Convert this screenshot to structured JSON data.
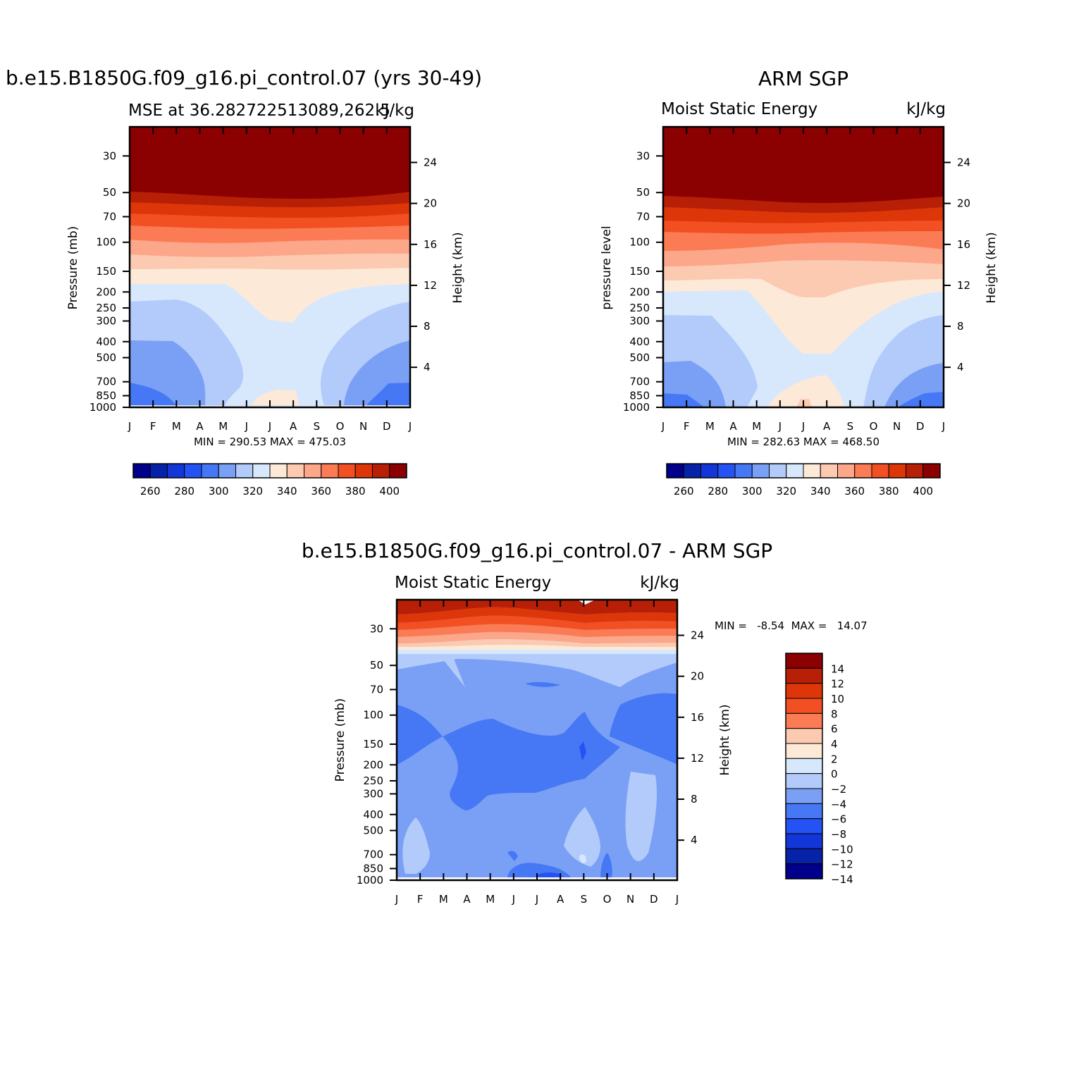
{
  "chart_data": [
    {
      "type": "heatmap",
      "title": "b.e15.B1850G.f09_g16.pi_control.07 (yrs 30-49)",
      "subtitle_left": "MSE at 36.282722513089,262.5",
      "subtitle_right": "kJ/kg",
      "ylabel_left": "Pressure (mb)",
      "ylabel_right": "Height (km)",
      "x_ticks": [
        "J",
        "F",
        "M",
        "A",
        "M",
        "J",
        "J",
        "A",
        "S",
        "O",
        "N",
        "D",
        "J"
      ],
      "pressure_ticks": [
        "30",
        "50",
        "70",
        "100",
        "150",
        "200",
        "250",
        "300",
        "400",
        "500",
        "700",
        "850",
        "1000"
      ],
      "height_ticks": [
        "24",
        "20",
        "16",
        "12",
        "8",
        "4"
      ],
      "stats": "MIN =  290.53  MAX =  475.03",
      "colorbar_labels": [
        "260",
        "280",
        "300",
        "320",
        "340",
        "360",
        "380",
        "400"
      ],
      "colorbar_levels": [
        250,
        260,
        270,
        280,
        290,
        300,
        310,
        320,
        330,
        340,
        350,
        360,
        370,
        380,
        390,
        400
      ],
      "contour_bands": [
        {
          "level": 290,
          "range_hPa": [
            1000,
            700
          ],
          "months": [
            "J",
            "F",
            "M",
            "D"
          ]
        },
        {
          "level": 300,
          "range_hPa": [
            1000,
            400
          ],
          "months": [
            "J",
            "F",
            "M",
            "A",
            "N",
            "D"
          ]
        },
        {
          "level": 310,
          "range_hPa": [
            700,
            250
          ],
          "months": [
            "J",
            "F",
            "M",
            "A",
            "M",
            "O",
            "N",
            "D"
          ]
        },
        {
          "level": 320,
          "range_hPa": [
            1000,
            200
          ],
          "months": [
            "all"
          ]
        },
        {
          "level": 330,
          "range_hPa": [
            300,
            150
          ],
          "months": [
            "M",
            "J",
            "J",
            "A",
            "S",
            "O"
          ]
        },
        {
          "level": 340,
          "range_hPa": [
            150,
            120
          ]
        },
        {
          "level": 350,
          "range_hPa": [
            120,
            100
          ]
        },
        {
          "level": 360,
          "range_hPa": [
            100,
            80
          ]
        },
        {
          "level": 370,
          "range_hPa": [
            80,
            70
          ]
        },
        {
          "level": 380,
          "range_hPa": [
            70,
            62
          ]
        },
        {
          "level": 390,
          "range_hPa": [
            62,
            55
          ]
        },
        {
          "level": 400,
          "range_hPa": [
            55,
            20
          ]
        }
      ]
    },
    {
      "type": "heatmap",
      "title": "ARM SGP",
      "subtitle_left": "Moist Static Energy",
      "subtitle_right": "kJ/kg",
      "ylabel_left": "pressure level",
      "ylabel_right": "Height (km)",
      "x_ticks": [
        "J",
        "F",
        "M",
        "A",
        "M",
        "J",
        "J",
        "A",
        "S",
        "O",
        "N",
        "D",
        "J"
      ],
      "pressure_ticks": [
        "30",
        "50",
        "70",
        "100",
        "150",
        "200",
        "250",
        "300",
        "400",
        "500",
        "700",
        "850",
        "1000"
      ],
      "height_ticks": [
        "24",
        "20",
        "16",
        "12",
        "8",
        "4"
      ],
      "stats": "MIN =  282.63  MAX =  468.50",
      "colorbar_labels": [
        "260",
        "280",
        "300",
        "320",
        "340",
        "360",
        "380",
        "400"
      ],
      "colorbar_levels": [
        250,
        260,
        270,
        280,
        290,
        300,
        310,
        320,
        330,
        340,
        350,
        360,
        370,
        380,
        390,
        400
      ]
    },
    {
      "type": "heatmap",
      "title": "b.e15.B1850G.f09_g16.pi_control.07 - ARM SGP",
      "subtitle_left": "Moist Static Energy",
      "subtitle_right": "kJ/kg",
      "ylabel_left": "Pressure (mb)",
      "ylabel_right": "Height (km)",
      "x_ticks": [
        "J",
        "F",
        "M",
        "A",
        "M",
        "J",
        "J",
        "A",
        "S",
        "O",
        "N",
        "D",
        "J"
      ],
      "pressure_ticks": [
        "30",
        "50",
        "70",
        "100",
        "150",
        "200",
        "250",
        "300",
        "400",
        "500",
        "700",
        "850",
        "1000"
      ],
      "height_ticks": [
        "24",
        "20",
        "16",
        "12",
        "8",
        "4"
      ],
      "stats": "MIN =   -8.54  MAX =   14.07",
      "colorbar_labels": [
        "14",
        "12",
        "10",
        "8",
        "6",
        "4",
        "2",
        "0",
        "−2",
        "−4",
        "−6",
        "−8",
        "−10",
        "−12",
        "−14"
      ]
    }
  ],
  "colors": {
    "mse_scale": [
      "#00008b",
      "#0522a8",
      "#1236d8",
      "#2552f5",
      "#4678f5",
      "#7aa0f5",
      "#b2cbfa",
      "#d7e8fd",
      "#fde9d7",
      "#fccab0",
      "#fca68a",
      "#fb7b55",
      "#f24f22",
      "#dd3608",
      "#b71f06",
      "#8b0000"
    ],
    "diff_scale": [
      "#8b0000",
      "#b71f06",
      "#dd3608",
      "#f24f22",
      "#fb7b55",
      "#fccab0",
      "#fde9d7",
      "#d7e8fd",
      "#b2cbfa",
      "#7aa0f5",
      "#4678f5",
      "#2552f5",
      "#1236d8",
      "#0522a8",
      "#00008b"
    ]
  }
}
